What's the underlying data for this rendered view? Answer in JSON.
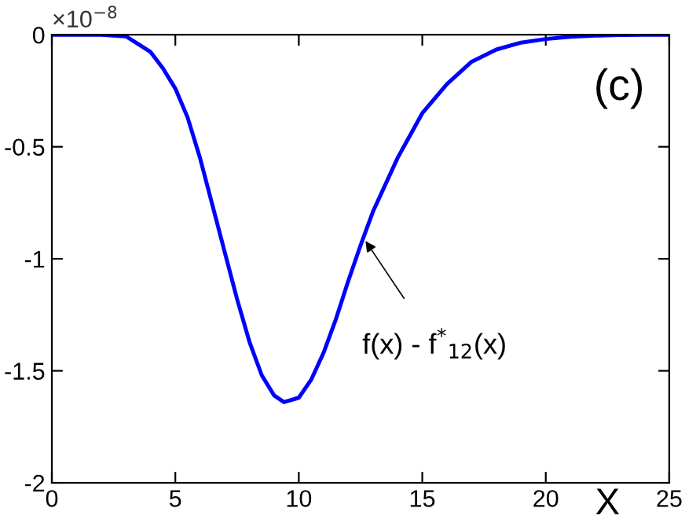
{
  "chart_data": {
    "type": "line",
    "xlabel": "X",
    "x": [
      0,
      1,
      2,
      3,
      4,
      4.5,
      5,
      5.5,
      6,
      6.5,
      7,
      7.5,
      8,
      8.5,
      9,
      9.4,
      10,
      10.5,
      11,
      11.5,
      12,
      12.5,
      13,
      14,
      15,
      16,
      17,
      18,
      19,
      20,
      21,
      22,
      23,
      24,
      25
    ],
    "series": [
      {
        "color": "#0000ff",
        "values": [
          0,
          0,
          0,
          -0.007,
          -0.077,
          -0.15,
          -0.24,
          -0.37,
          -0.55,
          -0.76,
          -0.97,
          -1.18,
          -1.37,
          -1.52,
          -1.61,
          -1.64,
          -1.62,
          -1.54,
          -1.42,
          -1.27,
          -1.1,
          -0.94,
          -0.79,
          -0.55,
          -0.35,
          -0.22,
          -0.12,
          -0.066,
          -0.035,
          -0.019,
          -0.009,
          -0.004,
          -0.001,
          0,
          0
        ]
      }
    ],
    "xlim": [
      0,
      25
    ],
    "xticks": [
      0,
      5,
      10,
      15,
      20,
      25
    ],
    "ylim": [
      -2,
      0
    ],
    "yticks": [
      -2,
      -1.5,
      -1,
      -0.5,
      0
    ],
    "grid": false,
    "marker": "none",
    "line_style": "solid",
    "annotations": [
      "×10$^{−8}$",
      "(c)",
      {
        "text": "f(x) - f$^{*}$$_{12}$(x)",
        "x": 12.7,
        "y": -0.92
      }
    ]
  }
}
